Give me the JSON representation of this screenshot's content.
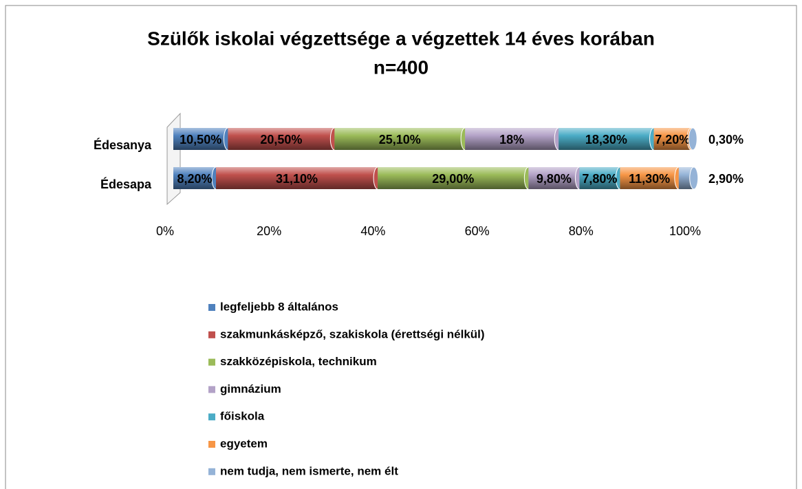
{
  "chart_data": {
    "type": "bar",
    "orientation": "horizontal",
    "stacked": true,
    "title": "Szülők iskolai végzettsége a végzettek 14 éves korában",
    "subtitle": "n=400",
    "categories": [
      "Édesanya",
      "Édesapa"
    ],
    "series": [
      {
        "name": "legfeljebb 8 általános",
        "color": "#4f81bd",
        "values": [
          10.5,
          8.2
        ],
        "value_labels": [
          "10,50%",
          "8,20%"
        ]
      },
      {
        "name": "szakmunkásképző, szakiskola (érettségi nélkül)",
        "color": "#c0504d",
        "values": [
          20.5,
          31.1
        ],
        "value_labels": [
          "20,50%",
          "31,10%"
        ]
      },
      {
        "name": "szakközépiskola, technikum",
        "color": "#9bbb59",
        "values": [
          25.1,
          29.0
        ],
        "value_labels": [
          "25,10%",
          "29,00%"
        ]
      },
      {
        "name": "gimnázium",
        "color": "#b3a2c7",
        "values": [
          18,
          9.8
        ],
        "value_labels": [
          "18%",
          "9,80%"
        ]
      },
      {
        "name": "főiskola",
        "color": "#4bacc6",
        "values": [
          18.3,
          7.8
        ],
        "value_labels": [
          "18,30%",
          "7,80%"
        ]
      },
      {
        "name": "egyetem",
        "color": "#f79646",
        "values": [
          7.2,
          11.3
        ],
        "value_labels": [
          "7,20%",
          "11,30%"
        ]
      },
      {
        "name": "nem tudja, nem ismerte, nem élt",
        "color": "#95b3d7",
        "values": [
          0.3,
          2.9
        ],
        "value_labels": [
          "0,30%",
          "2,90%"
        ]
      }
    ],
    "xlim": [
      0,
      100
    ],
    "xticks": [
      {
        "value": 0,
        "label": "0%"
      },
      {
        "value": 20,
        "label": "20%"
      },
      {
        "value": 40,
        "label": "40%"
      },
      {
        "value": 60,
        "label": "60%"
      },
      {
        "value": 80,
        "label": "80%"
      },
      {
        "value": 100,
        "label": "100%"
      }
    ],
    "legend": "bottom"
  }
}
